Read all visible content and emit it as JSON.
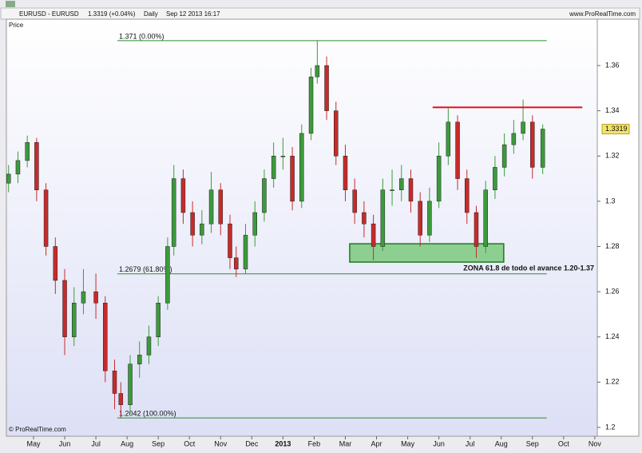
{
  "header": {
    "symbol": "EURUSD - EURUSD",
    "quote": "1.3319 (+0.04%)",
    "period": "Daily",
    "datetime": "Sep 12 2013 16:17",
    "site": "www.ProRealTime.com"
  },
  "chart_data": {
    "type": "candlestick",
    "y_label": "Price",
    "copyright": "© ProRealTime.com",
    "x": [
      -0.8,
      -0.5,
      -0.2,
      0.1,
      0.4,
      0.7,
      1.0,
      1.3,
      1.6,
      2.0,
      2.3,
      2.6,
      2.8,
      3.1,
      3.4,
      3.7,
      4.0,
      4.3,
      4.5,
      4.8,
      5.1,
      5.4,
      5.7,
      6.0,
      6.3,
      6.5,
      6.8,
      7.1,
      7.4,
      7.7,
      8.0,
      8.3,
      8.6,
      8.9,
      9.1,
      9.4,
      9.7,
      10.0,
      10.3,
      10.6,
      10.9,
      11.2,
      11.5,
      11.8,
      12.1,
      12.4,
      12.7,
      13.0,
      13.3,
      13.6,
      13.9,
      14.2,
      14.5,
      14.8,
      15.1,
      15.4,
      15.7,
      16.0,
      16.33
    ],
    "open": [
      1.308,
      1.312,
      1.318,
      1.326,
      1.305,
      1.28,
      1.265,
      1.24,
      1.255,
      1.26,
      1.255,
      1.225,
      1.215,
      1.21,
      1.228,
      1.232,
      1.24,
      1.255,
      1.28,
      1.31,
      1.295,
      1.285,
      1.29,
      1.305,
      1.29,
      1.275,
      1.27,
      1.285,
      1.295,
      1.31,
      1.32,
      1.32,
      1.3,
      1.33,
      1.355,
      1.36,
      1.34,
      1.32,
      1.305,
      1.295,
      1.29,
      1.28,
      1.305,
      1.305,
      1.31,
      1.3,
      1.285,
      1.3,
      1.32,
      1.335,
      1.31,
      1.295,
      1.28,
      1.305,
      1.315,
      1.325,
      1.33,
      1.335,
      1.315
    ],
    "high": [
      1.316,
      1.322,
      1.329,
      1.328,
      1.308,
      1.284,
      1.27,
      1.262,
      1.27,
      1.268,
      1.258,
      1.23,
      1.22,
      1.232,
      1.238,
      1.245,
      1.258,
      1.284,
      1.316,
      1.314,
      1.3,
      1.296,
      1.313,
      1.308,
      1.294,
      1.28,
      1.29,
      1.3,
      1.314,
      1.326,
      1.328,
      1.324,
      1.334,
      1.359,
      1.371,
      1.364,
      1.344,
      1.325,
      1.31,
      1.3,
      1.294,
      1.31,
      1.314,
      1.316,
      1.314,
      1.304,
      1.306,
      1.326,
      1.341,
      1.338,
      1.314,
      1.298,
      1.309,
      1.32,
      1.33,
      1.336,
      1.345,
      1.338,
      1.334
    ],
    "low": [
      1.304,
      1.308,
      1.315,
      1.3,
      1.276,
      1.259,
      1.232,
      1.236,
      1.25,
      1.248,
      1.22,
      1.208,
      1.2042,
      1.206,
      1.222,
      1.228,
      1.236,
      1.252,
      1.276,
      1.29,
      1.28,
      1.281,
      1.286,
      1.285,
      1.27,
      1.2665,
      1.268,
      1.28,
      1.291,
      1.306,
      1.314,
      1.296,
      1.297,
      1.327,
      1.352,
      1.336,
      1.316,
      1.3,
      1.29,
      1.284,
      1.274,
      1.278,
      1.298,
      1.3,
      1.295,
      1.28,
      1.282,
      1.297,
      1.316,
      1.305,
      1.29,
      1.275,
      1.277,
      1.301,
      1.311,
      1.321,
      1.327,
      1.31,
      1.312
    ],
    "close": [
      1.312,
      1.318,
      1.326,
      1.305,
      1.28,
      1.265,
      1.24,
      1.255,
      1.26,
      1.255,
      1.225,
      1.215,
      1.21,
      1.228,
      1.232,
      1.24,
      1.255,
      1.28,
      1.31,
      1.295,
      1.285,
      1.29,
      1.305,
      1.29,
      1.275,
      1.27,
      1.285,
      1.295,
      1.31,
      1.32,
      1.32,
      1.3,
      1.33,
      1.355,
      1.36,
      1.34,
      1.32,
      1.305,
      1.295,
      1.29,
      1.28,
      1.305,
      1.305,
      1.31,
      1.3,
      1.285,
      1.3,
      1.32,
      1.335,
      1.31,
      1.295,
      1.28,
      1.305,
      1.315,
      1.325,
      1.33,
      1.335,
      1.315,
      1.3319
    ],
    "up_color": "#3c9a3c",
    "down_color": "#c82a2a",
    "xlim": [
      -0.87,
      18.08
    ],
    "xticks": [
      {
        "value": 0,
        "label": "May"
      },
      {
        "value": 1,
        "label": "Jun"
      },
      {
        "value": 2,
        "label": "Jul"
      },
      {
        "value": 3,
        "label": "Aug"
      },
      {
        "value": 4,
        "label": "Sep"
      },
      {
        "value": 5,
        "label": "Oct"
      },
      {
        "value": 6,
        "label": "Nov"
      },
      {
        "value": 7,
        "label": "Dec"
      },
      {
        "value": 8,
        "label": "2013"
      },
      {
        "value": 9,
        "label": "Feb"
      },
      {
        "value": 10,
        "label": "Mar"
      },
      {
        "value": 11,
        "label": "Apr"
      },
      {
        "value": 12,
        "label": "May"
      },
      {
        "value": 13,
        "label": "Jun"
      },
      {
        "value": 14,
        "label": "Jul"
      },
      {
        "value": 15,
        "label": "Aug"
      },
      {
        "value": 16,
        "label": "Sep"
      },
      {
        "value": 17,
        "label": "Oct"
      },
      {
        "value": 18,
        "label": "Nov"
      }
    ],
    "ylim": [
      1.1961,
      1.3805
    ],
    "yticks": [
      1.2,
      1.22,
      1.24,
      1.26,
      1.28,
      1.3,
      1.32,
      1.34,
      1.36
    ],
    "last_price": 1.3319,
    "fibonacci": [
      {
        "value": 1.371,
        "label": "1.371 (0.00%)"
      },
      {
        "value": 1.2679,
        "label": "1.2679 (61.80%)"
      },
      {
        "value": 1.2042,
        "label": "1.2042 (100.00%)"
      }
    ],
    "fib_x": [
      2.69,
      16.46
    ],
    "fib_color": "#2e8b2e",
    "resistance": {
      "y": 1.3415,
      "x": [
        12.8,
        17.6
      ],
      "color": "#e01020"
    },
    "zone": {
      "x": [
        10.14,
        15.08
      ],
      "y": [
        1.2731,
        1.2812
      ],
      "color": "#6cc46c",
      "label": "ZONA 61.8 de todo el avance 1.20-1.37"
    }
  }
}
